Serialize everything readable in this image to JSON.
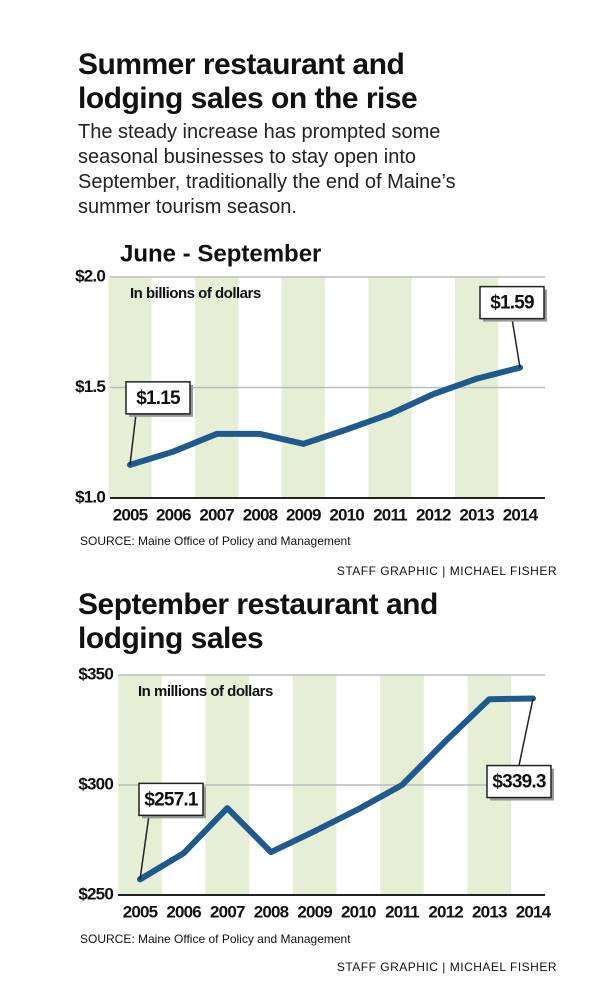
{
  "title": "Summer restaurant and lodging sales on the rise",
  "subtitle": "The steady increase has prompted some seasonal businesses to stay open into September, traditionally the end of Maine’s summer tourism season.",
  "chart_data": [
    {
      "type": "line",
      "title": "June - September",
      "annotation": "In billions of dollars",
      "categories": [
        "2005",
        "2006",
        "2007",
        "2008",
        "2009",
        "2010",
        "2011",
        "2012",
        "2013",
        "2014"
      ],
      "values": [
        1.15,
        1.21,
        1.29,
        1.29,
        1.245,
        1.31,
        1.38,
        1.47,
        1.54,
        1.59
      ],
      "value_labels": [
        "$1.15",
        null,
        null,
        null,
        null,
        null,
        null,
        null,
        null,
        "$1.59"
      ],
      "color": "#1f5a8f",
      "ylim": [
        1.0,
        2.0
      ],
      "yticks": [
        {
          "value": 1.0,
          "label": "$1.0"
        },
        {
          "value": 1.5,
          "label": "$1.5"
        },
        {
          "value": 2.0,
          "label": "$2.0"
        }
      ],
      "grid": true,
      "source": "SOURCE: Maine Office of Policy and Management",
      "credit": "STAFF GRAPHIC | MICHAEL FISHER"
    },
    {
      "type": "line",
      "title": "September restaurant and lodging sales",
      "annotation": "In millions of dollars",
      "categories": [
        "2005",
        "2006",
        "2007",
        "2008",
        "2009",
        "2010",
        "2011",
        "2012",
        "2013",
        "2014"
      ],
      "values": [
        257.1,
        269,
        289.5,
        269.5,
        279,
        289,
        300,
        320,
        339,
        339.3
      ],
      "value_labels": [
        "$257.1",
        null,
        null,
        null,
        null,
        null,
        null,
        null,
        null,
        "$339.3"
      ],
      "color": "#1f5a8f",
      "ylim": [
        250,
        350
      ],
      "yticks": [
        {
          "value": 250,
          "label": "$250"
        },
        {
          "value": 300,
          "label": "$300"
        },
        {
          "value": 350,
          "label": "$350"
        }
      ],
      "grid": true,
      "source": "SOURCE: Maine Office of Policy and Management",
      "credit": "STAFF GRAPHIC | MICHAEL FISHER"
    }
  ]
}
